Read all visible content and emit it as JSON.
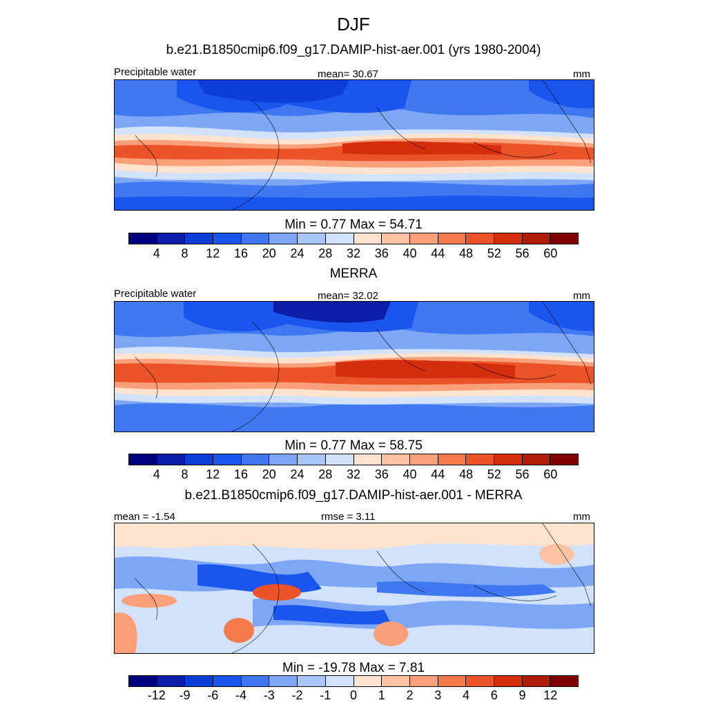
{
  "season": "DJF",
  "panels": [
    {
      "title": "b.e21.B1850cmip6.f09_g17.DAMIP-hist-aer.001 (yrs 1980-2004)",
      "left_label": "Precipitable water",
      "center_label": "mean=  30.67",
      "right_label": "mm",
      "minmax": "Min =   0.77 Max =  54.71",
      "colorbar": {
        "ticks": [
          "4",
          "8",
          "12",
          "16",
          "20",
          "24",
          "28",
          "32",
          "36",
          "40",
          "44",
          "48",
          "52",
          "56",
          "60"
        ],
        "colors": [
          "#00007f",
          "#0a1ea8",
          "#0d3fd8",
          "#1a55ee",
          "#3f78f0",
          "#7da6f5",
          "#a9c6f8",
          "#d2e2fa",
          "#ffe3cf",
          "#fcc2a2",
          "#f9a07a",
          "#f47a4c",
          "#ea5428",
          "#d42e0e",
          "#b01c08",
          "#7f0000"
        ]
      }
    },
    {
      "title": "MERRA",
      "left_label": "Precipitable water",
      "center_label": "mean=  32.02",
      "right_label": "mm",
      "minmax": "Min =   0.77 Max =  58.75",
      "colorbar": {
        "ticks": [
          "4",
          "8",
          "12",
          "16",
          "20",
          "24",
          "28",
          "32",
          "36",
          "40",
          "44",
          "48",
          "52",
          "56",
          "60"
        ],
        "colors": [
          "#00007f",
          "#0a1ea8",
          "#0d3fd8",
          "#1a55ee",
          "#3f78f0",
          "#7da6f5",
          "#a9c6f8",
          "#d2e2fa",
          "#ffe3cf",
          "#fcc2a2",
          "#f9a07a",
          "#f47a4c",
          "#ea5428",
          "#d42e0e",
          "#b01c08",
          "#7f0000"
        ]
      }
    },
    {
      "title": "b.e21.B1850cmip6.f09_g17.DAMIP-hist-aer.001 - MERRA",
      "left_label": "mean =  -1.54",
      "center_label": "rmse =   3.11",
      "right_label": "mm",
      "minmax": "Min = -19.78 Max =   7.81",
      "colorbar": {
        "ticks": [
          "-12",
          "-9",
          "-6",
          "-4",
          "-3",
          "-2",
          "-1",
          "0",
          "1",
          "2",
          "3",
          "4",
          "6",
          "9",
          "12"
        ],
        "colors": [
          "#00007f",
          "#0a1ea8",
          "#0d3fd8",
          "#1a55ee",
          "#3f78f0",
          "#7da6f5",
          "#a9c6f8",
          "#d2e2fa",
          "#ffe3cf",
          "#fcc2a2",
          "#f9a07a",
          "#f47a4c",
          "#ea5428",
          "#d42e0e",
          "#b01c08",
          "#7f0000"
        ]
      }
    }
  ]
}
